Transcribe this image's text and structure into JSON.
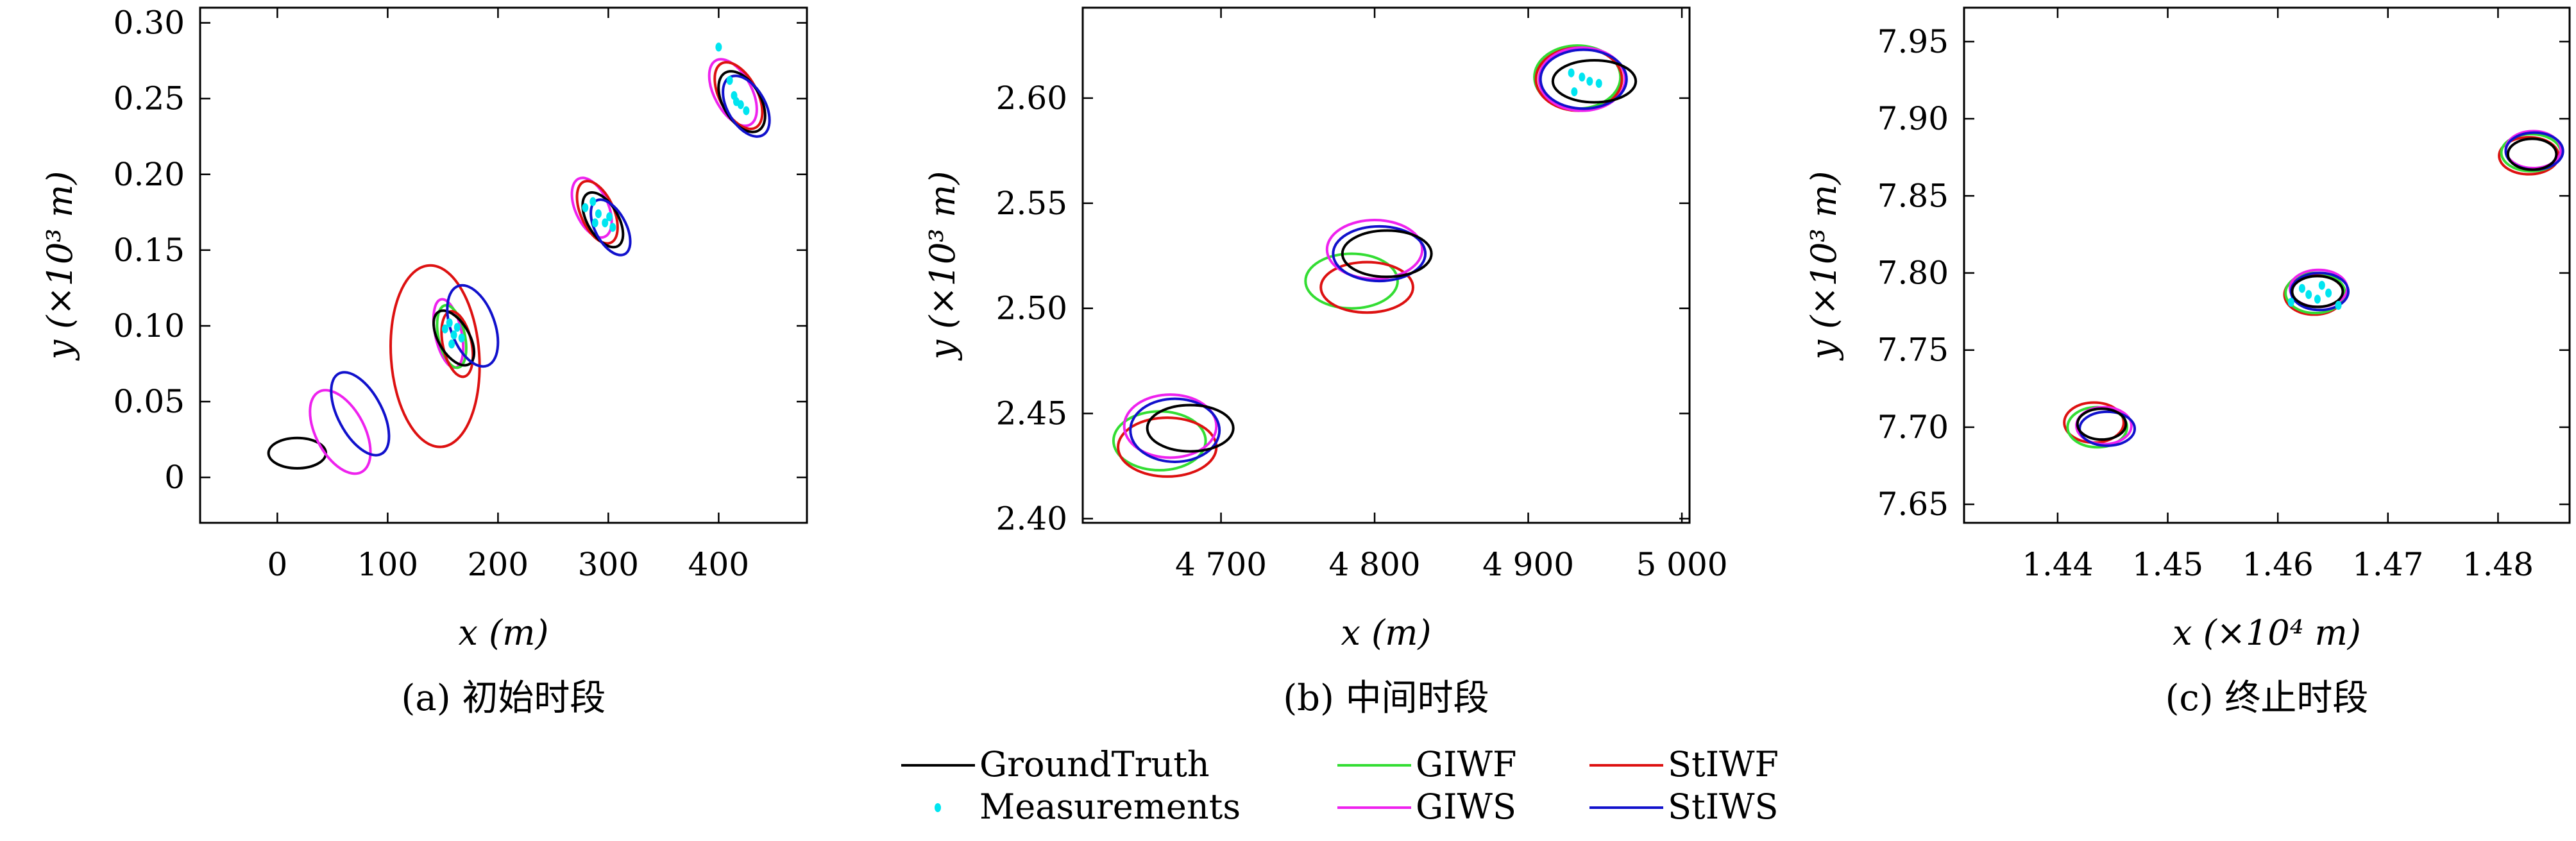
{
  "legend": [
    {
      "key": "groundtruth",
      "label": "GroundTruth",
      "color": "#000000",
      "kind": "line"
    },
    {
      "key": "measurements",
      "label": "Measurements",
      "color": "#00e5f0",
      "kind": "dot"
    },
    {
      "key": "giwf",
      "label": "GIWF",
      "color": "#33dd33",
      "kind": "line"
    },
    {
      "key": "giws",
      "label": "GIWS",
      "color": "#ee22ee",
      "kind": "line"
    },
    {
      "key": "stiwf",
      "label": "StIWF",
      "color": "#dd1111",
      "kind": "line"
    },
    {
      "key": "stiws",
      "label": "StIWS",
      "color": "#1111cc",
      "kind": "line"
    }
  ],
  "chart_data": [
    {
      "type": "scatter",
      "caption": "(a) 初始时段",
      "xlabel": "x (m)",
      "ylabel": "y (×10³ m)",
      "xlim": [
        -70,
        480
      ],
      "ylim": [
        -0.03,
        0.31
      ],
      "xticks": [
        0,
        100,
        200,
        300,
        400
      ],
      "xticklabels": [
        "0",
        "100",
        "200",
        "300",
        "400"
      ],
      "yticks": [
        0,
        0.05,
        0.1,
        0.15,
        0.2,
        0.25,
        0.3
      ],
      "yticklabels": [
        "0",
        "0.05",
        "0.10",
        "0.15",
        "0.20",
        "0.25",
        "0.30"
      ],
      "ellipses": [
        {
          "series": "groundtruth",
          "cx": 18,
          "cy": 0.016,
          "rx": 26,
          "ry": 0.01,
          "angle": 0
        },
        {
          "series": "giws",
          "cx": 57,
          "cy": 0.03,
          "rx": 22,
          "ry": 0.03,
          "angle": -28
        },
        {
          "series": "stiws",
          "cx": 75,
          "cy": 0.042,
          "rx": 20,
          "ry": 0.03,
          "angle": -28
        },
        {
          "series": "stiwf",
          "cx": 143,
          "cy": 0.08,
          "rx": 40,
          "ry": 0.06,
          "angle": -4
        },
        {
          "series": "giws",
          "cx": 155,
          "cy": 0.095,
          "rx": 12,
          "ry": 0.023,
          "angle": -12
        },
        {
          "series": "giwf",
          "cx": 158,
          "cy": 0.093,
          "rx": 12,
          "ry": 0.021,
          "angle": -12
        },
        {
          "series": "stiwf",
          "cx": 163,
          "cy": 0.088,
          "rx": 13,
          "ry": 0.022,
          "angle": -12
        },
        {
          "series": "groundtruth",
          "cx": 160,
          "cy": 0.092,
          "rx": 14,
          "ry": 0.02,
          "angle": -30
        },
        {
          "series": "stiws",
          "cx": 177,
          "cy": 0.1,
          "rx": 20,
          "ry": 0.028,
          "angle": -20
        },
        {
          "series": "giws",
          "cx": 285,
          "cy": 0.178,
          "rx": 15,
          "ry": 0.021,
          "angle": -24
        },
        {
          "series": "stiwf",
          "cx": 290,
          "cy": 0.175,
          "rx": 15,
          "ry": 0.022,
          "angle": -24
        },
        {
          "series": "groundtruth",
          "cx": 295,
          "cy": 0.17,
          "rx": 14,
          "ry": 0.02,
          "angle": -30
        },
        {
          "series": "stiws",
          "cx": 302,
          "cy": 0.165,
          "rx": 14,
          "ry": 0.02,
          "angle": -28
        },
        {
          "series": "giws",
          "cx": 413,
          "cy": 0.254,
          "rx": 17,
          "ry": 0.024,
          "angle": -28
        },
        {
          "series": "stiwf",
          "cx": 418,
          "cy": 0.252,
          "rx": 17,
          "ry": 0.024,
          "angle": -28
        },
        {
          "series": "groundtruth",
          "cx": 421,
          "cy": 0.248,
          "rx": 17,
          "ry": 0.022,
          "angle": -30
        },
        {
          "series": "stiws",
          "cx": 425,
          "cy": 0.245,
          "rx": 17,
          "ry": 0.022,
          "angle": -30
        }
      ],
      "measurements": [
        [
          152,
          0.098
        ],
        [
          156,
          0.102
        ],
        [
          160,
          0.094
        ],
        [
          163,
          0.099
        ],
        [
          158,
          0.088
        ],
        [
          167,
          0.092
        ],
        [
          279,
          0.178
        ],
        [
          286,
          0.182
        ],
        [
          291,
          0.174
        ],
        [
          297,
          0.168
        ],
        [
          301,
          0.172
        ],
        [
          288,
          0.168
        ],
        [
          304,
          0.165
        ],
        [
          400,
          0.284
        ],
        [
          410,
          0.262
        ],
        [
          414,
          0.252
        ],
        [
          420,
          0.246
        ],
        [
          425,
          0.242
        ],
        [
          416,
          0.248
        ]
      ]
    },
    {
      "type": "scatter",
      "caption": "(b) 中间时段",
      "xlabel": "x (m)",
      "ylabel": "y (×10³ m)",
      "xlim": [
        4610,
        5005
      ],
      "ylim": [
        2.398,
        2.643
      ],
      "xticks": [
        4700,
        4800,
        4900,
        5000
      ],
      "xticklabels": [
        "4 700",
        "4 800",
        "4 900",
        "5 000"
      ],
      "yticks": [
        2.4,
        2.45,
        2.5,
        2.55,
        2.6
      ],
      "yticklabels": [
        "2.40",
        "2.45",
        "2.50",
        "2.55",
        "2.60"
      ],
      "ellipses": [
        {
          "series": "giwf",
          "cx": 4660,
          "cy": 2.437,
          "rx": 30,
          "ry": 0.014,
          "angle": 0
        },
        {
          "series": "stiwf",
          "cx": 4665,
          "cy": 2.434,
          "rx": 32,
          "ry": 0.014,
          "angle": 0
        },
        {
          "series": "giws",
          "cx": 4667,
          "cy": 2.444,
          "rx": 30,
          "ry": 0.015,
          "angle": 0
        },
        {
          "series": "stiws",
          "cx": 4670,
          "cy": 2.442,
          "rx": 29,
          "ry": 0.015,
          "angle": 0
        },
        {
          "series": "groundtruth",
          "cx": 4680,
          "cy": 2.443,
          "rx": 28,
          "ry": 0.011,
          "angle": 0
        },
        {
          "series": "giwf",
          "cx": 4785,
          "cy": 2.513,
          "rx": 30,
          "ry": 0.013,
          "angle": 0
        },
        {
          "series": "stiwf",
          "cx": 4795,
          "cy": 2.51,
          "rx": 30,
          "ry": 0.012,
          "angle": 0
        },
        {
          "series": "giws",
          "cx": 4800,
          "cy": 2.528,
          "rx": 31,
          "ry": 0.014,
          "angle": 0
        },
        {
          "series": "stiws",
          "cx": 4803,
          "cy": 2.526,
          "rx": 30,
          "ry": 0.013,
          "angle": 0
        },
        {
          "series": "groundtruth",
          "cx": 4808,
          "cy": 2.526,
          "rx": 29,
          "ry": 0.011,
          "angle": 0
        },
        {
          "series": "giwf",
          "cx": 4932,
          "cy": 2.61,
          "rx": 28,
          "ry": 0.015,
          "angle": 0
        },
        {
          "series": "stiwf",
          "cx": 4933,
          "cy": 2.609,
          "rx": 28,
          "ry": 0.015,
          "angle": 0
        },
        {
          "series": "giws",
          "cx": 4935,
          "cy": 2.609,
          "rx": 28,
          "ry": 0.015,
          "angle": 0
        },
        {
          "series": "stiws",
          "cx": 4936,
          "cy": 2.609,
          "rx": 28,
          "ry": 0.014,
          "angle": 0
        },
        {
          "series": "groundtruth",
          "cx": 4943,
          "cy": 2.608,
          "rx": 27,
          "ry": 0.01,
          "angle": 0
        }
      ],
      "measurements": [
        [
          4928,
          2.612
        ],
        [
          4935,
          2.61
        ],
        [
          4940,
          2.608
        ],
        [
          4930,
          2.603
        ],
        [
          4946,
          2.607
        ]
      ]
    },
    {
      "type": "scatter",
      "caption": "(c) 终止时段",
      "xlabel": "x (×10⁴ m)",
      "ylabel": "y (×10³ m)",
      "xlim": [
        1.4315,
        1.4865
      ],
      "ylim": [
        7.638,
        7.972
      ],
      "xticks": [
        1.44,
        1.45,
        1.46,
        1.47,
        1.48
      ],
      "xticklabels": [
        "1.44",
        "1.45",
        "1.46",
        "1.47",
        "1.48"
      ],
      "yticks": [
        7.65,
        7.7,
        7.75,
        7.8,
        7.85,
        7.9,
        7.95
      ],
      "yticklabels": [
        "7.65",
        "7.70",
        "7.75",
        "7.80",
        "7.85",
        "7.90",
        "7.95"
      ],
      "ellipses": [
        {
          "series": "stiwf",
          "cx": 1.4433,
          "cy": 7.703,
          "rx": 0.0027,
          "ry": 0.013,
          "angle": 0
        },
        {
          "series": "giwf",
          "cx": 1.4436,
          "cy": 7.7,
          "rx": 0.0027,
          "ry": 0.013,
          "angle": 0
        },
        {
          "series": "giws",
          "cx": 1.4442,
          "cy": 7.701,
          "rx": 0.0025,
          "ry": 0.012,
          "angle": 0
        },
        {
          "series": "stiws",
          "cx": 1.4445,
          "cy": 7.699,
          "rx": 0.0025,
          "ry": 0.011,
          "angle": 0
        },
        {
          "series": "groundtruth",
          "cx": 1.444,
          "cy": 7.702,
          "rx": 0.0022,
          "ry": 0.01,
          "angle": 0
        },
        {
          "series": "stiwf",
          "cx": 1.4633,
          "cy": 7.786,
          "rx": 0.0027,
          "ry": 0.013,
          "angle": 0
        },
        {
          "series": "giwf",
          "cx": 1.4634,
          "cy": 7.787,
          "rx": 0.0027,
          "ry": 0.013,
          "angle": 0
        },
        {
          "series": "giws",
          "cx": 1.4637,
          "cy": 7.79,
          "rx": 0.0026,
          "ry": 0.012,
          "angle": 0
        },
        {
          "series": "stiws",
          "cx": 1.4638,
          "cy": 7.788,
          "rx": 0.0026,
          "ry": 0.012,
          "angle": 0
        },
        {
          "series": "groundtruth",
          "cx": 1.4636,
          "cy": 7.788,
          "rx": 0.0023,
          "ry": 0.01,
          "angle": 0
        },
        {
          "series": "stiwf",
          "cx": 1.4828,
          "cy": 7.876,
          "rx": 0.0027,
          "ry": 0.012,
          "angle": 0
        },
        {
          "series": "giwf",
          "cx": 1.483,
          "cy": 7.878,
          "rx": 0.0027,
          "ry": 0.012,
          "angle": 0
        },
        {
          "series": "giws",
          "cx": 1.4832,
          "cy": 7.88,
          "rx": 0.0025,
          "ry": 0.012,
          "angle": 0
        },
        {
          "series": "stiws",
          "cx": 1.4833,
          "cy": 7.879,
          "rx": 0.0026,
          "ry": 0.012,
          "angle": 0
        },
        {
          "series": "groundtruth",
          "cx": 1.4831,
          "cy": 7.877,
          "rx": 0.0022,
          "ry": 0.01,
          "angle": 0
        }
      ],
      "measurements": [
        [
          1.4612,
          7.781
        ],
        [
          1.4628,
          7.786
        ],
        [
          1.464,
          7.792
        ],
        [
          1.4646,
          7.787
        ],
        [
          1.4655,
          7.779
        ],
        [
          1.4622,
          7.79
        ],
        [
          1.4636,
          7.783
        ]
      ]
    }
  ]
}
